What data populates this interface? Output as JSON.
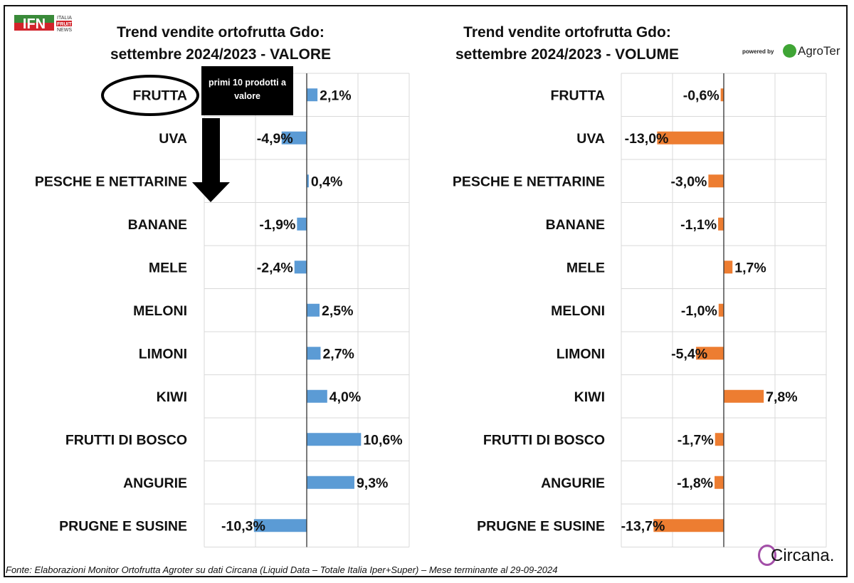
{
  "logos": {
    "ifn": "IFN ITALIA FRUIT NEWS",
    "powered_by": "powered by",
    "agroter": "AgroTer",
    "circana": "Circana."
  },
  "annotation": "primi 10 prodotti a valore",
  "source": "Fonte: Elaborazioni Monitor Ortofrutta Agroter su dati Circana (Liquid Data – Totale Italia Iper+Super) – Mese terminante al 29-09-2024",
  "colors": {
    "valore": "#5b9bd5",
    "volume": "#ed7d31"
  },
  "chart_data": [
    {
      "type": "bar",
      "orientation": "horizontal",
      "title_line1": "Trend vendite ortofrutta Gdo:",
      "title_line2": "settembre 2024/2023 - VALORE",
      "unit": "%",
      "xlim": [
        -20,
        20
      ],
      "grid": true,
      "categories": [
        "FRUTTA",
        "UVA",
        "PESCHE E NETTARINE",
        "BANANE",
        "MELE",
        "MELONI",
        "LIMONI",
        "KIWI",
        "FRUTTI DI BOSCO",
        "ANGURIE",
        "PRUGNE E SUSINE"
      ],
      "values": [
        2.1,
        -4.9,
        0.4,
        -1.9,
        -2.4,
        2.5,
        2.7,
        4.0,
        10.6,
        9.3,
        -10.3
      ],
      "labels": [
        "2,1%",
        "-4,9%",
        "0,4%",
        "-1,9%",
        "-2,4%",
        "2,5%",
        "2,7%",
        "4,0%",
        "10,6%",
        "9,3%",
        "-10,3%"
      ]
    },
    {
      "type": "bar",
      "orientation": "horizontal",
      "title_line1": "Trend vendite ortofrutta Gdo:",
      "title_line2": "settembre 2024/2023 - VOLUME",
      "unit": "%",
      "xlim": [
        -20,
        20
      ],
      "grid": true,
      "categories": [
        "FRUTTA",
        "UVA",
        "PESCHE E NETTARINE",
        "BANANE",
        "MELE",
        "MELONI",
        "LIMONI",
        "KIWI",
        "FRUTTI DI BOSCO",
        "ANGURIE",
        "PRUGNE E SUSINE"
      ],
      "values": [
        -0.6,
        -13.0,
        -3.0,
        -1.1,
        1.7,
        -1.0,
        -5.4,
        7.8,
        -1.7,
        -1.8,
        -13.7
      ],
      "labels": [
        "-0,6%",
        "-13,0%",
        "-3,0%",
        "-1,1%",
        "1,7%",
        "-1,0%",
        "-5,4%",
        "7,8%",
        "-1,7%",
        "-1,8%",
        "-13,7%"
      ]
    }
  ]
}
